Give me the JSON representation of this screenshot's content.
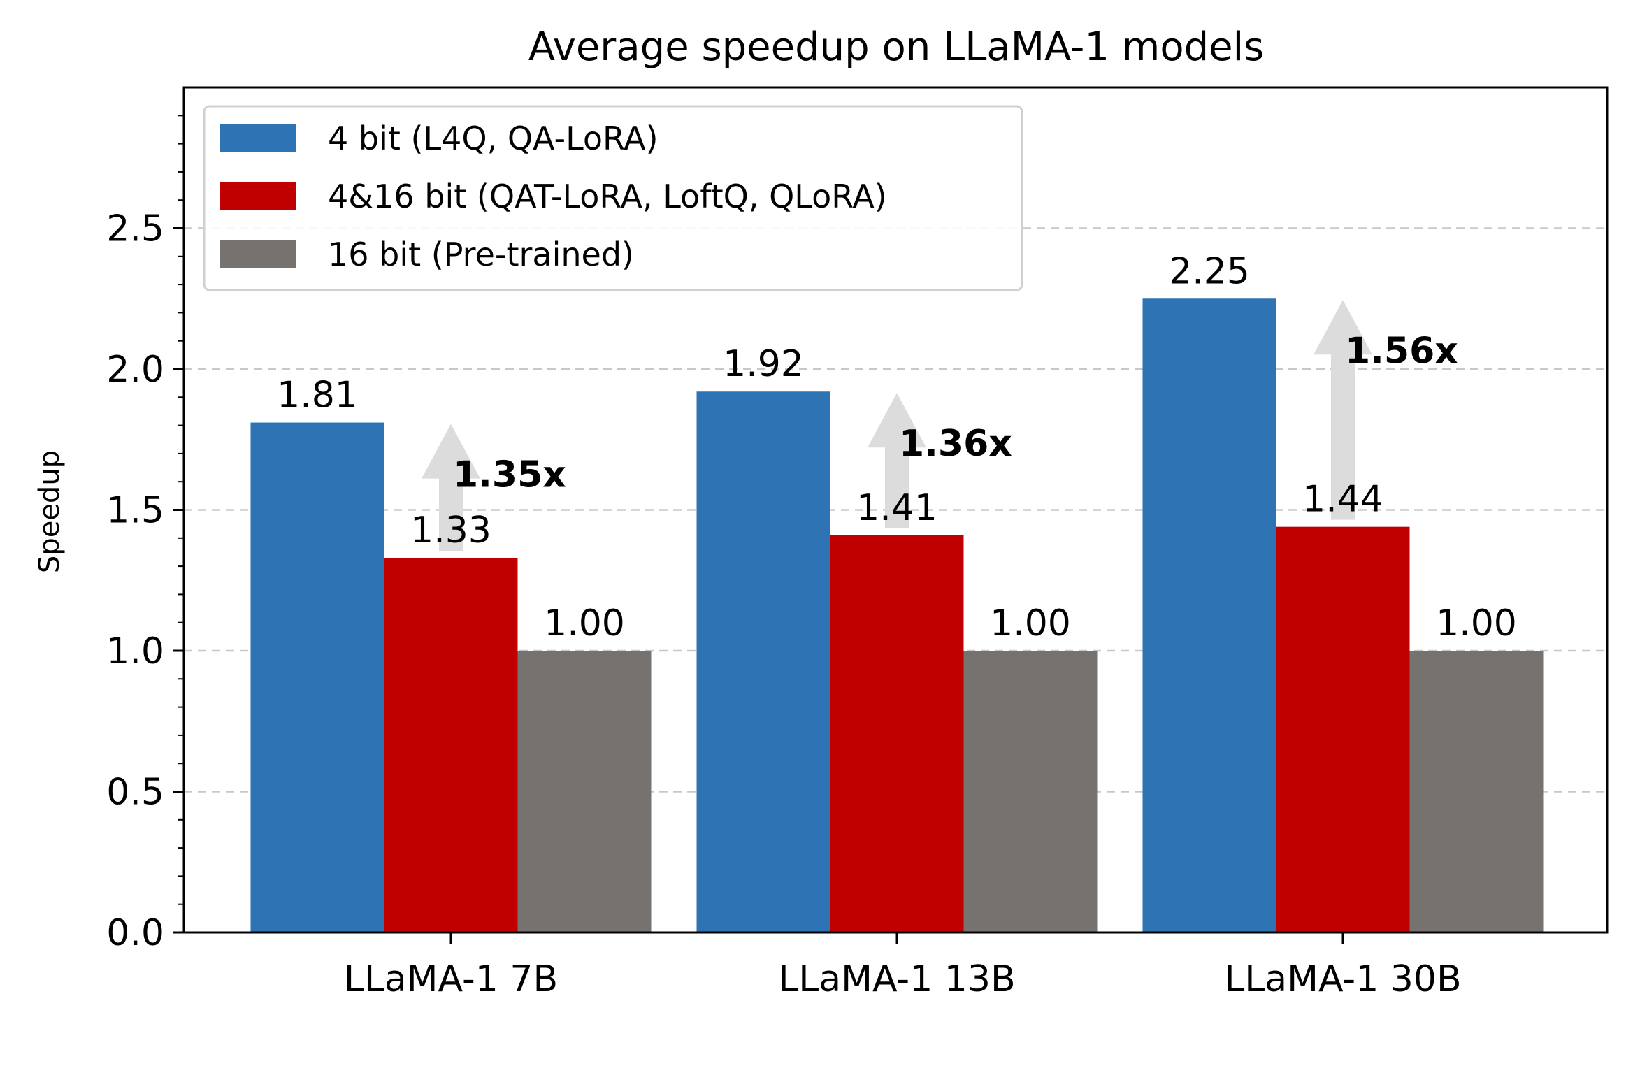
{
  "chart_data": {
    "type": "bar",
    "title": "Average speedup on LLaMA-1 models",
    "ylabel": "Speedup",
    "xlabel": "",
    "categories": [
      "LLaMA-1 7B",
      "LLaMA-1 13B",
      "LLaMA-1 30B"
    ],
    "series": [
      {
        "name": "4 bit (L4Q, QA-LoRA)",
        "color": "#2e73b4",
        "values": [
          1.81,
          1.92,
          2.25
        ],
        "labels": [
          "1.81",
          "1.92",
          "2.25"
        ]
      },
      {
        "name": "4&16 bit (QAT-LoRA, LoftQ, QLoRA)",
        "color": "#c00000",
        "values": [
          1.33,
          1.41,
          1.44
        ],
        "labels": [
          "1.33",
          "1.41",
          "1.44"
        ]
      },
      {
        "name": "16 bit (Pre-trained)",
        "color": "#767270",
        "values": [
          1.0,
          1.0,
          1.0
        ],
        "labels": [
          "1.00",
          "1.00",
          "1.00"
        ]
      }
    ],
    "annotations": [
      {
        "category": "LLaMA-1 7B",
        "text": "1.35x",
        "from": 1.33,
        "to": 1.81
      },
      {
        "category": "LLaMA-1 13B",
        "text": "1.36x",
        "from": 1.41,
        "to": 1.92
      },
      {
        "category": "LLaMA-1 30B",
        "text": "1.56x",
        "from": 1.44,
        "to": 2.25
      }
    ],
    "yticks": [
      0.0,
      0.5,
      1.0,
      1.5,
      2.0,
      2.5
    ],
    "ytick_labels": [
      "0.0",
      "0.5",
      "1.0",
      "1.5",
      "2.0",
      "2.5"
    ],
    "ylim": [
      0,
      3.0
    ],
    "grid": "horizontal dashed",
    "legend_position": "upper-left",
    "arrow_color": "#dcdcdc"
  }
}
